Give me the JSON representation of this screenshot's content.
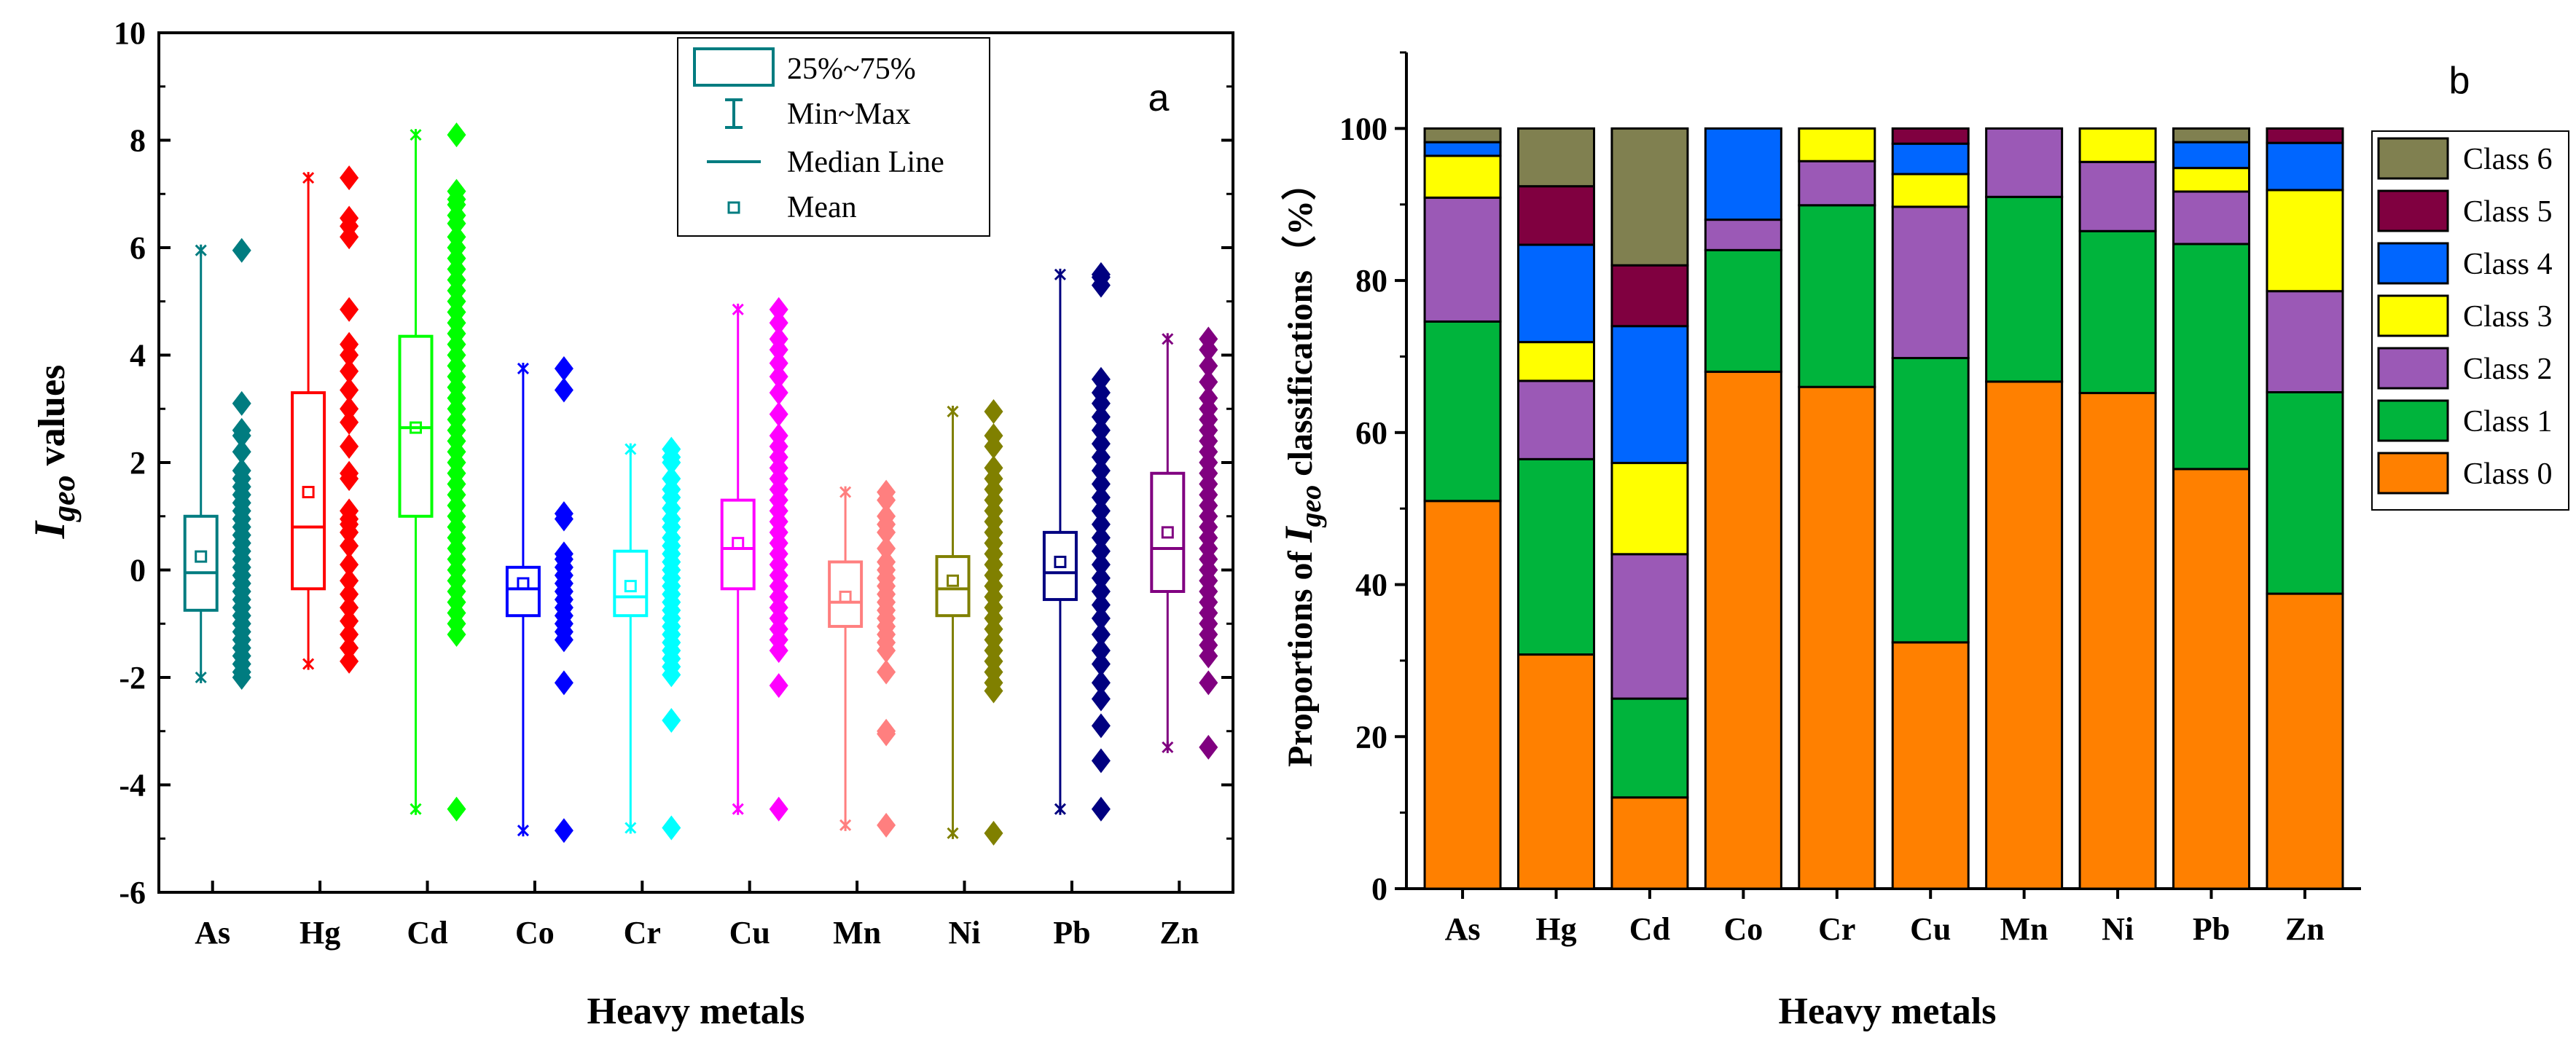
{
  "chart_data": [
    {
      "panel": "a",
      "type": "box",
      "ylabel_main": "I",
      "ylabel_sub": "geo",
      "ylabel_rest": " values",
      "xlabel": "Heavy metals",
      "ylim": [
        -6,
        10
      ],
      "yticks": [
        "-6",
        "-4",
        "-2",
        "0",
        "2",
        "4",
        "6",
        "8",
        "10"
      ],
      "legend": {
        "box": "25%~75%",
        "whisker": "Min~Max",
        "median": "Median Line",
        "mean": "Mean"
      },
      "series": [
        {
          "name": "As",
          "color": "#007C80",
          "min": -2.0,
          "q1": -0.75,
          "median": -0.05,
          "q3": 1.0,
          "max": 5.95,
          "mean": 0.25,
          "points": [
            5.95,
            3.1,
            2.6,
            2.5,
            2.2,
            1.85,
            1.7,
            1.55,
            1.4,
            1.25,
            1.1,
            0.95,
            0.8,
            0.65,
            0.5,
            0.35,
            0.2,
            0.05,
            -0.1,
            -0.25,
            -0.4,
            -0.55,
            -0.7,
            -0.85,
            -1.0,
            -1.15,
            -1.3,
            -1.45,
            -1.6,
            -1.75,
            -1.9,
            -2.0
          ]
        },
        {
          "name": "Hg",
          "color": "#FF0000",
          "min": -1.75,
          "q1": -0.35,
          "median": 0.8,
          "q3": 3.3,
          "max": 7.3,
          "mean": 1.45,
          "points": [
            7.3,
            6.55,
            6.4,
            6.2,
            4.85,
            4.2,
            4.0,
            3.7,
            3.35,
            3.0,
            2.75,
            2.3,
            1.8,
            1.7,
            1.1,
            0.95,
            0.85,
            0.7,
            0.45,
            0.1,
            -0.2,
            -0.45,
            -0.7,
            -0.95,
            -1.2,
            -1.45,
            -1.7
          ]
        },
        {
          "name": "Cd",
          "color": "#00FF00",
          "min": -4.45,
          "q1": 1.0,
          "median": 2.65,
          "q3": 4.35,
          "max": 8.1,
          "mean": 2.65,
          "points": [
            8.1,
            7.05,
            6.9,
            6.8,
            6.6,
            6.45,
            6.2,
            6.0,
            5.8,
            5.6,
            5.4,
            5.2,
            5.0,
            4.8,
            4.6,
            4.4,
            4.2,
            4.0,
            3.8,
            3.6,
            3.4,
            3.2,
            3.0,
            2.8,
            2.6,
            2.4,
            2.2,
            2.0,
            1.8,
            1.6,
            1.4,
            1.2,
            1.0,
            0.8,
            0.6,
            0.4,
            0.2,
            0.0,
            -0.2,
            -0.4,
            -0.6,
            -0.8,
            -1.0,
            -1.2,
            -4.45
          ]
        },
        {
          "name": "Co",
          "color": "#0000FF",
          "min": -4.85,
          "q1": -0.85,
          "median": -0.35,
          "q3": 0.05,
          "max": 3.75,
          "mean": -0.25,
          "points": [
            3.75,
            3.35,
            1.05,
            0.95,
            0.3,
            0.2,
            0.05,
            -0.1,
            -0.25,
            -0.4,
            -0.55,
            -0.7,
            -0.85,
            -1.0,
            -1.15,
            -1.3,
            -2.1,
            -4.85
          ]
        },
        {
          "name": "Cr",
          "color": "#00FFFF",
          "min": -4.8,
          "q1": -0.85,
          "median": -0.5,
          "q3": 0.35,
          "max": 2.25,
          "mean": -0.3,
          "points": [
            2.25,
            2.1,
            2.0,
            1.7,
            1.5,
            1.35,
            1.15,
            0.95,
            0.8,
            0.6,
            0.45,
            0.3,
            0.15,
            0.0,
            -0.15,
            -0.3,
            -0.45,
            -0.6,
            -0.75,
            -0.9,
            -1.05,
            -1.2,
            -1.35,
            -1.5,
            -1.65,
            -1.8,
            -1.95,
            -2.8,
            -4.8
          ]
        },
        {
          "name": "Cu",
          "color": "#FF00FF",
          "min": -4.45,
          "q1": -0.35,
          "median": 0.4,
          "q3": 1.3,
          "max": 4.85,
          "mean": 0.5,
          "points": [
            4.85,
            4.6,
            4.3,
            4.1,
            3.85,
            3.6,
            3.3,
            2.9,
            2.5,
            2.3,
            2.1,
            1.9,
            1.7,
            1.5,
            1.3,
            1.1,
            0.9,
            0.7,
            0.5,
            0.3,
            0.1,
            -0.1,
            -0.3,
            -0.5,
            -0.7,
            -0.9,
            -1.1,
            -1.3,
            -1.5,
            -2.15,
            -4.45
          ]
        },
        {
          "name": "Mn",
          "color": "#FF7F7F",
          "min": -4.75,
          "q1": -1.05,
          "median": -0.6,
          "q3": 0.15,
          "max": 1.45,
          "mean": -0.5,
          "points": [
            1.45,
            1.3,
            1.0,
            0.85,
            0.7,
            0.4,
            0.15,
            0.0,
            -0.15,
            -0.3,
            -0.45,
            -0.6,
            -0.75,
            -0.9,
            -1.05,
            -1.2,
            -1.35,
            -1.5,
            -1.9,
            -3.0,
            -3.05,
            -4.75
          ]
        },
        {
          "name": "Ni",
          "color": "#808000",
          "min": -4.9,
          "q1": -0.85,
          "median": -0.35,
          "q3": 0.25,
          "max": 2.95,
          "mean": -0.2,
          "points": [
            2.95,
            2.5,
            2.3,
            1.9,
            1.7,
            1.5,
            1.3,
            1.1,
            0.9,
            0.7,
            0.5,
            0.3,
            0.1,
            -0.1,
            -0.3,
            -0.5,
            -0.7,
            -0.9,
            -1.1,
            -1.3,
            -1.5,
            -1.7,
            -1.9,
            -2.1,
            -2.25,
            -4.9
          ]
        },
        {
          "name": "Pb",
          "color": "#000080",
          "min": -4.45,
          "q1": -0.55,
          "median": -0.05,
          "q3": 0.7,
          "max": 5.5,
          "mean": 0.15,
          "points": [
            5.5,
            5.45,
            5.3,
            3.55,
            3.3,
            3.1,
            2.85,
            2.6,
            2.35,
            2.1,
            1.85,
            1.6,
            1.35,
            1.1,
            0.85,
            0.6,
            0.35,
            0.1,
            -0.15,
            -0.4,
            -0.65,
            -0.9,
            -1.2,
            -1.5,
            -1.75,
            -2.1,
            -2.4,
            -2.9,
            -3.55,
            -4.45
          ]
        },
        {
          "name": "Zn",
          "color": "#800080",
          "min": -3.3,
          "q1": -0.4,
          "median": 0.4,
          "q3": 1.8,
          "max": 4.3,
          "mean": 0.7,
          "points": [
            4.3,
            4.1,
            3.8,
            3.5,
            3.2,
            3.0,
            2.8,
            2.6,
            2.4,
            2.2,
            2.0,
            1.8,
            1.6,
            1.4,
            1.2,
            1.0,
            0.8,
            0.6,
            0.4,
            0.2,
            0.0,
            -0.2,
            -0.4,
            -0.6,
            -0.8,
            -1.0,
            -1.2,
            -1.4,
            -1.6,
            -2.1,
            -3.3
          ]
        }
      ]
    },
    {
      "panel": "b",
      "type": "stacked-bar",
      "ylabel_pre": "Proportions of ",
      "ylabel_main": "I",
      "ylabel_sub": "geo",
      "ylabel_rest": " classifications（%）",
      "xlabel": "Heavy metals",
      "ylim": [
        0,
        110
      ],
      "yticks": [
        "0",
        "20",
        "40",
        "60",
        "80",
        "100"
      ],
      "categories": [
        "As",
        "Hg",
        "Cd",
        "Co",
        "Cr",
        "Cu",
        "Mn",
        "Ni",
        "Pb",
        "Zn"
      ],
      "series": [
        {
          "name": "Class 0",
          "color": "#FF8000",
          "values": [
            51.0,
            30.8,
            12.0,
            68.0,
            66.0,
            32.4,
            66.7,
            65.2,
            55.2,
            38.8
          ]
        },
        {
          "name": "Class 1",
          "color": "#00B43C",
          "values": [
            23.6,
            25.7,
            13.0,
            16.0,
            23.9,
            37.4,
            24.3,
            21.3,
            29.6,
            26.5
          ]
        },
        {
          "name": "Class 2",
          "color": "#9B59B6",
          "values": [
            16.3,
            10.3,
            19.0,
            4.0,
            5.8,
            19.9,
            9.0,
            9.1,
            6.9,
            13.3
          ]
        },
        {
          "name": "Class 3",
          "color": "#FFFF00",
          "values": [
            5.5,
            5.1,
            12.0,
            0.0,
            4.3,
            4.3,
            0.0,
            4.4,
            3.1,
            13.3
          ]
        },
        {
          "name": "Class 4",
          "color": "#0066FF",
          "values": [
            1.8,
            12.8,
            18.0,
            12.0,
            0.0,
            4.0,
            0.0,
            0.0,
            3.4,
            6.2
          ]
        },
        {
          "name": "Class 5",
          "color": "#800040",
          "values": [
            0.0,
            7.7,
            8.0,
            0.0,
            0.0,
            2.0,
            0.0,
            0.0,
            0.0,
            1.9
          ]
        },
        {
          "name": "Class 6",
          "color": "#808050",
          "values": [
            1.8,
            7.6,
            18.0,
            0.0,
            0.0,
            0.0,
            0.0,
            0.0,
            1.8,
            0.0
          ]
        }
      ]
    }
  ]
}
